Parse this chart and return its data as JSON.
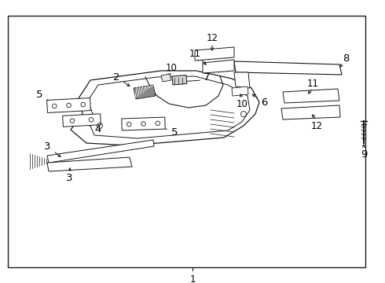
{
  "background_color": "#ffffff",
  "border_color": "#000000",
  "line_color": "#1a1a1a",
  "text_color": "#000000",
  "labels": [
    "1",
    "2",
    "3",
    "4",
    "5",
    "6",
    "7",
    "8",
    "9",
    "10",
    "11",
    "12"
  ],
  "font_size": 8.5,
  "fig_width": 4.9,
  "fig_height": 3.6,
  "dpi": 100,
  "border": [
    10,
    20,
    455,
    320
  ]
}
